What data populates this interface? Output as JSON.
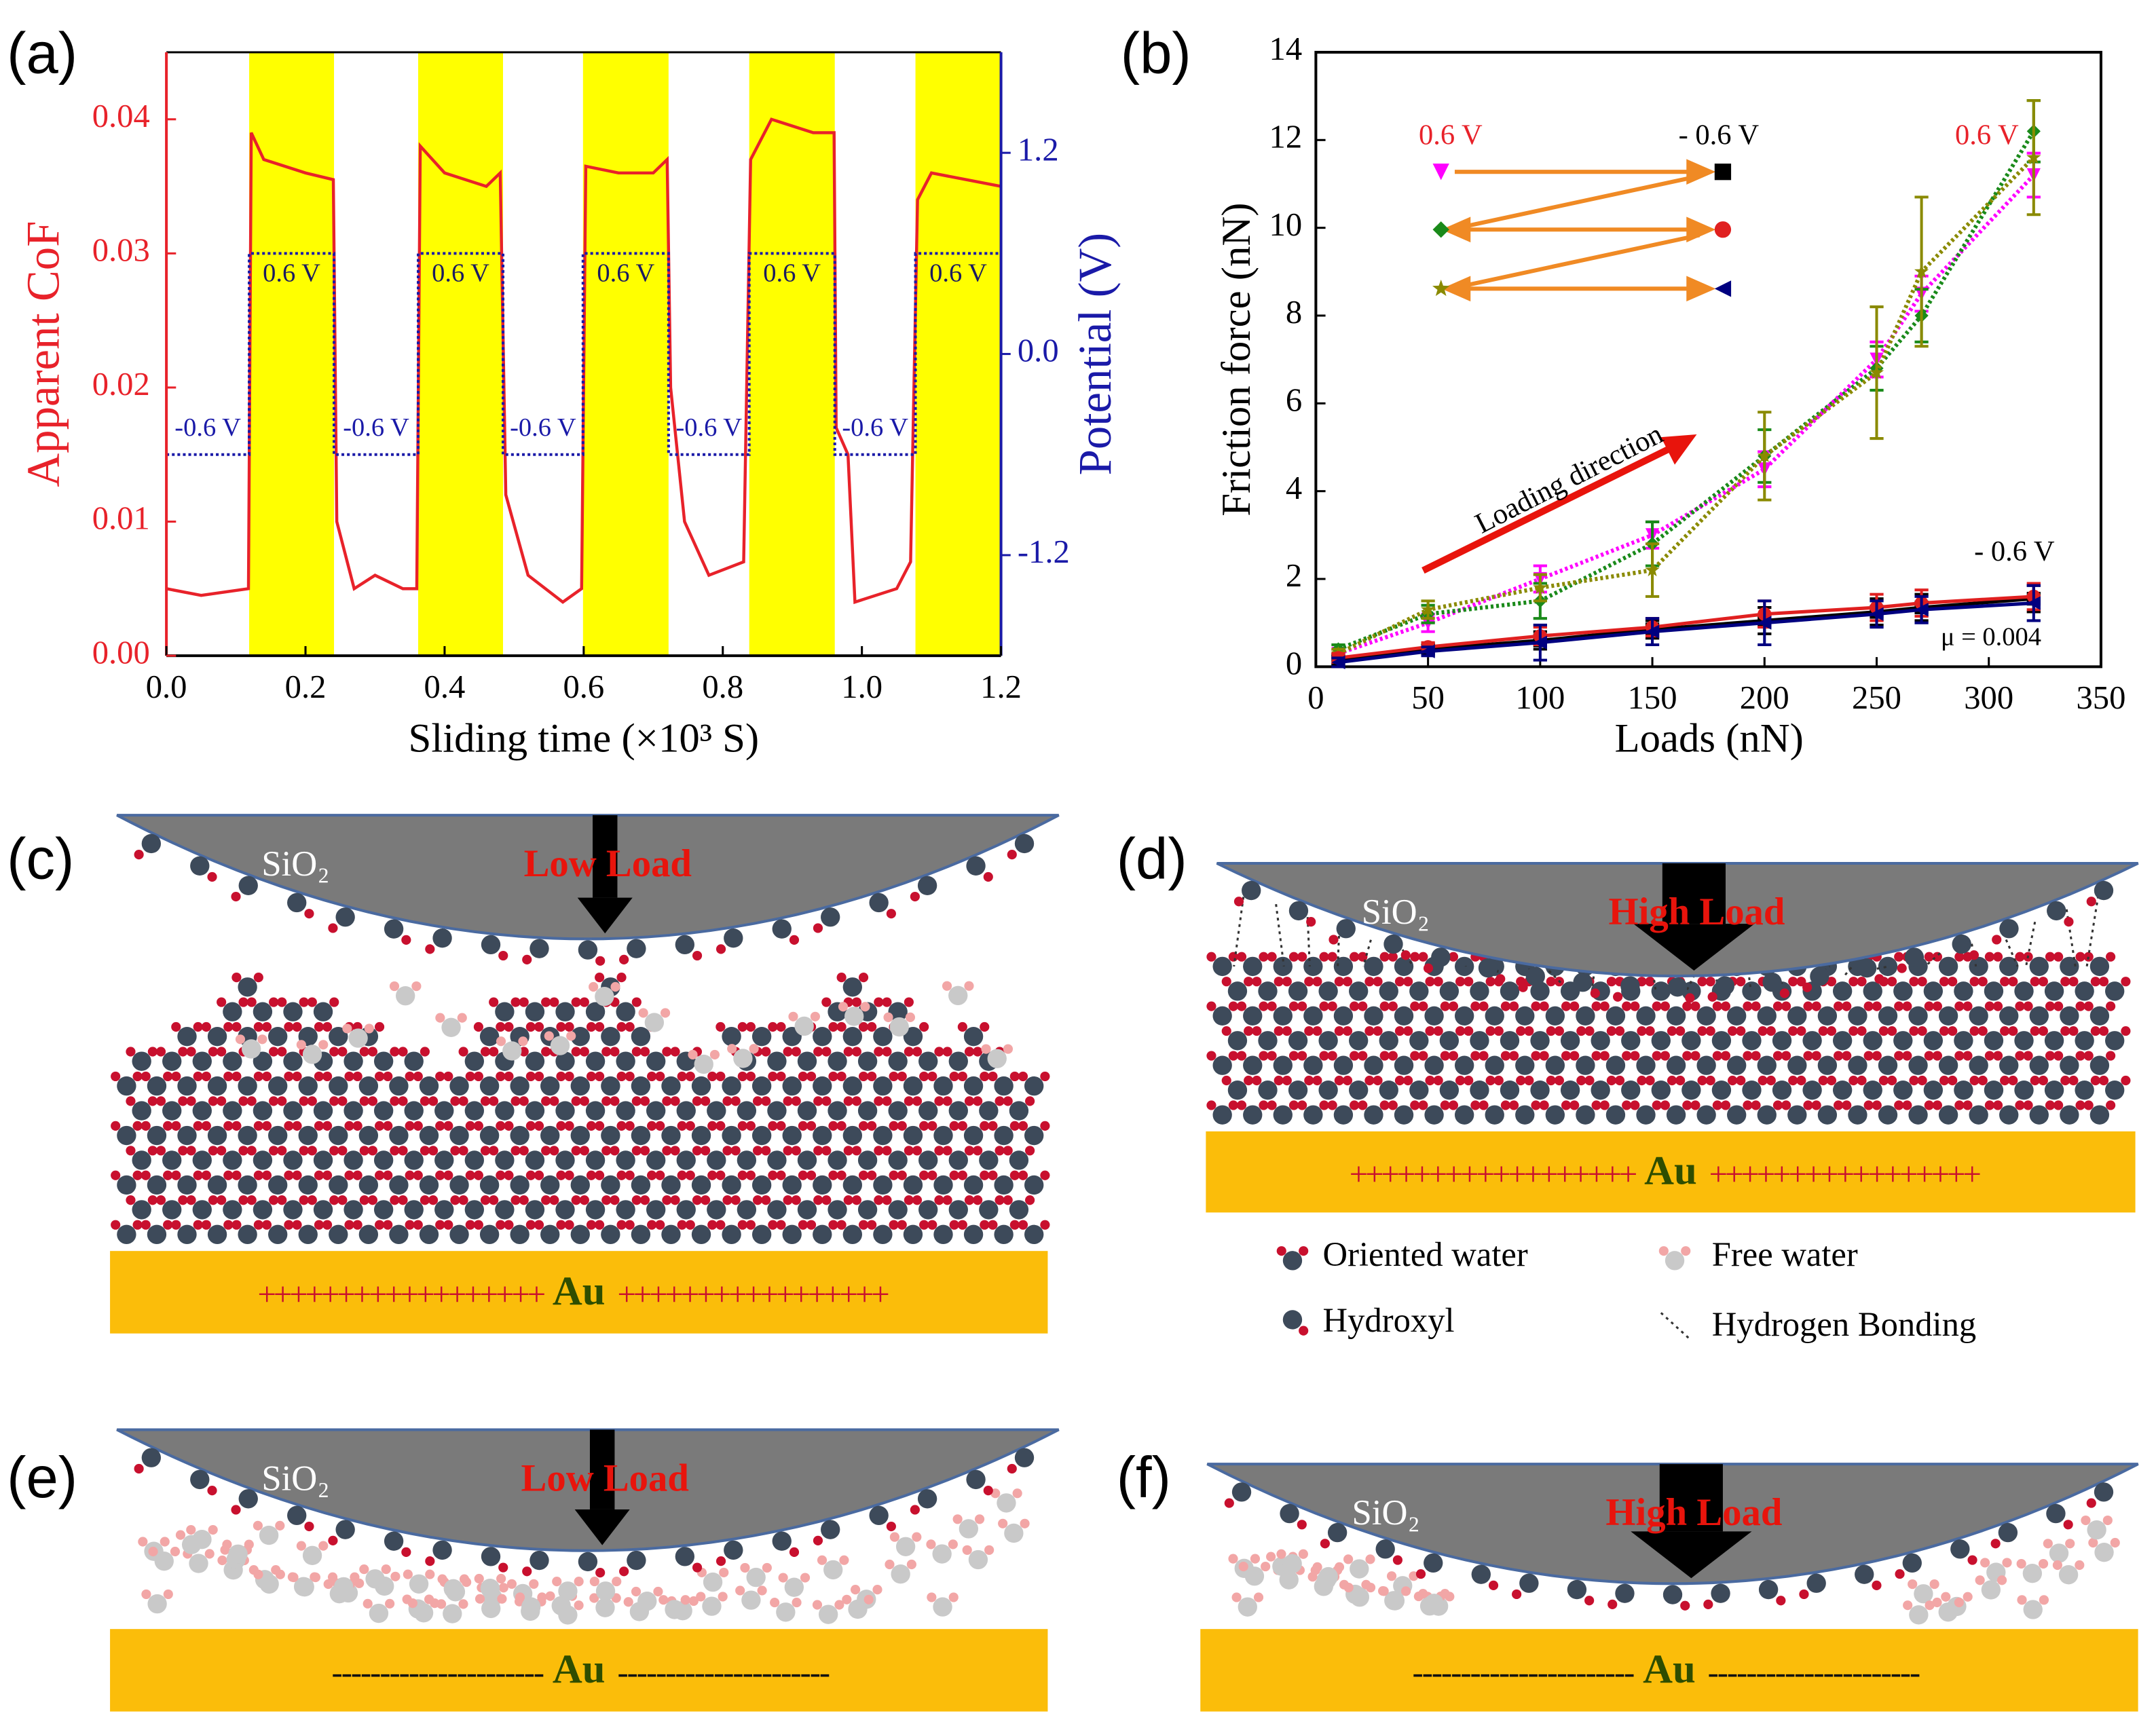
{
  "panel_labels": [
    "(a)",
    "(b)",
    "(c)",
    "(d)",
    "(e)",
    "(f)"
  ],
  "chart_data": [
    {
      "type": "line",
      "x_label": "Sliding time (×10³ S)",
      "y_label": "Apparent CoF",
      "y2_label": "Potential (V)",
      "xlim": [
        0,
        1.2
      ],
      "xticks": [
        {
          "value": 0,
          "label": "0.0"
        },
        0.2,
        0.4,
        0.6,
        0.8,
        {
          "value": 1,
          "label": "1.0"
        },
        1.2
      ],
      "ylim": [
        0,
        0.045
      ],
      "yticks": [
        {
          "value": 0,
          "label": "0.00"
        },
        0.01,
        0.02,
        0.03,
        0.04
      ],
      "y2lim": [
        -1.8,
        1.8
      ],
      "y2ticks": [
        -1.2,
        {
          "value": 0,
          "label": "0.0"
        },
        1.2
      ],
      "span_color": "#ffff00",
      "spans": [
        [
          0.119,
          0.241
        ],
        [
          0.362,
          0.484
        ],
        [
          0.599,
          0.722
        ],
        [
          0.838,
          0.961
        ],
        [
          1.077,
          1.2
        ]
      ],
      "high_labels": [
        "0.6 V",
        "0.6 V",
        "0.6 V",
        "0.6 V",
        "0.6 V"
      ],
      "low_labels": [
        "-0.6 V",
        "-0.6 V",
        "-0.6 V",
        "-0.6 V",
        "-0.6 V"
      ],
      "series": [
        {
          "color": "#e8222a",
          "style": "solid",
          "x": [
            0,
            0.05,
            0.118,
            0.122,
            0.14,
            0.2,
            0.24,
            0.245,
            0.27,
            0.3,
            0.34,
            0.36,
            0.365,
            0.4,
            0.46,
            0.48,
            0.488,
            0.52,
            0.57,
            0.597,
            0.603,
            0.65,
            0.7,
            0.72,
            0.725,
            0.745,
            0.78,
            0.83,
            0.84,
            0.87,
            0.93,
            0.96,
            0.963,
            0.98,
            0.99,
            1.05,
            1.07,
            1.08,
            1.1,
            1.15,
            1.2
          ],
          "values": [
            0.005,
            0.0045,
            0.005,
            0.039,
            0.037,
            0.036,
            0.0355,
            0.01,
            0.005,
            0.006,
            0.005,
            0.005,
            0.038,
            0.036,
            0.035,
            0.036,
            0.012,
            0.006,
            0.004,
            0.005,
            0.0365,
            0.036,
            0.036,
            0.037,
            0.02,
            0.01,
            0.006,
            0.007,
            0.037,
            0.04,
            0.039,
            0.039,
            0.017,
            0.015,
            0.004,
            0.005,
            0.007,
            0.034,
            0.036,
            0.0355,
            0.035
          ]
        },
        {
          "color": "#1a1aa8",
          "style": "dotted",
          "axis": "y2",
          "x": [
            0,
            0.119,
            0.119,
            0.241,
            0.241,
            0.362,
            0.362,
            0.484,
            0.484,
            0.599,
            0.599,
            0.722,
            0.722,
            0.838,
            0.838,
            0.961,
            0.961,
            1.077,
            1.077,
            1.2
          ],
          "values": [
            -0.6,
            -0.6,
            0.6,
            0.6,
            -0.6,
            -0.6,
            0.6,
            0.6,
            -0.6,
            -0.6,
            0.6,
            0.6,
            -0.6,
            -0.6,
            0.6,
            0.6,
            -0.6,
            -0.6,
            0.6,
            0.6
          ]
        }
      ]
    },
    {
      "type": "scatter",
      "x_label": "Loads (nN)",
      "y_label": "Friction force (nN)",
      "xlim": [
        0,
        350
      ],
      "xticks": [
        0,
        50,
        100,
        150,
        200,
        250,
        300,
        350
      ],
      "ylim": [
        0,
        14
      ],
      "yticks": [
        0,
        2,
        4,
        6,
        8,
        10,
        12,
        14
      ],
      "x": [
        10,
        50,
        100,
        150,
        200,
        250,
        270,
        320
      ],
      "legend_labels": [
        "0.6 V",
        "- 0.6 V"
      ],
      "annotations": [
        "0.6 V",
        "- 0.6 V",
        "Loading direction",
        "μ = 0.004"
      ],
      "series": [
        {
          "marker": "tri-down",
          "color": "#ff00ff",
          "values": [
            0.3,
            1.0,
            2.0,
            3.0,
            4.5,
            7.0,
            8.5,
            11.2
          ],
          "errors": [
            0.1,
            0.2,
            0.3,
            0.3,
            0.4,
            0.4,
            0.4,
            0.5
          ]
        },
        {
          "marker": "diamond",
          "color": "#1a8a1a",
          "values": [
            0.4,
            1.2,
            1.5,
            2.8,
            4.8,
            6.8,
            8.0,
            12.2
          ],
          "errors": [
            0.1,
            0.2,
            0.4,
            0.5,
            0.6,
            0.5,
            0.6,
            0.7
          ]
        },
        {
          "marker": "star",
          "color": "#8a8a00",
          "values": [
            0.3,
            1.3,
            1.8,
            2.2,
            4.8,
            6.7,
            9.0,
            11.6
          ],
          "errors": [
            0.1,
            0.2,
            0.3,
            0.6,
            1.0,
            1.5,
            1.7,
            1.3
          ]
        },
        {
          "marker": "square",
          "color": "#000000",
          "values": [
            0.15,
            0.4,
            0.6,
            0.85,
            1.05,
            1.25,
            1.35,
            1.55
          ],
          "errors": [
            0.1,
            0.1,
            0.2,
            0.2,
            0.3,
            0.3,
            0.3,
            0.3
          ]
        },
        {
          "marker": "circle",
          "color": "#e02020",
          "values": [
            0.2,
            0.45,
            0.7,
            0.9,
            1.2,
            1.35,
            1.45,
            1.6
          ],
          "errors": [
            0.1,
            0.1,
            0.2,
            0.2,
            0.3,
            0.3,
            0.3,
            0.3
          ]
        },
        {
          "marker": "tri-left",
          "color": "#000080",
          "values": [
            0.1,
            0.35,
            0.55,
            0.8,
            1.0,
            1.2,
            1.3,
            1.45
          ],
          "errors": [
            0.1,
            0.1,
            0.4,
            0.3,
            0.5,
            0.3,
            0.3,
            0.4
          ]
        }
      ]
    }
  ],
  "diagrams": [
    {
      "tip": "SiO₂",
      "load": "Low Load",
      "substrate": "Au",
      "charge_left": "++++++++++++++++++",
      "charge_right": "+++++++++++++++++"
    },
    {
      "tip": "SiO₂",
      "load": "High Load",
      "substrate": "Au",
      "charge_left": "++++++++++++++++++",
      "charge_right": "+++++++++++++++++"
    },
    {
      "tip": "SiO₂",
      "load": "Low Load",
      "substrate": "Au",
      "charge_left": "----------------------",
      "charge_right": "----------------------"
    },
    {
      "tip": "SiO₂",
      "load": "High Load",
      "substrate": "Au",
      "charge_left": "-----------------------",
      "charge_right": "----------------------"
    }
  ],
  "legend": [
    "Oriented water",
    "Free water",
    "Hydroxyl",
    "Hydrogen Bonding"
  ]
}
